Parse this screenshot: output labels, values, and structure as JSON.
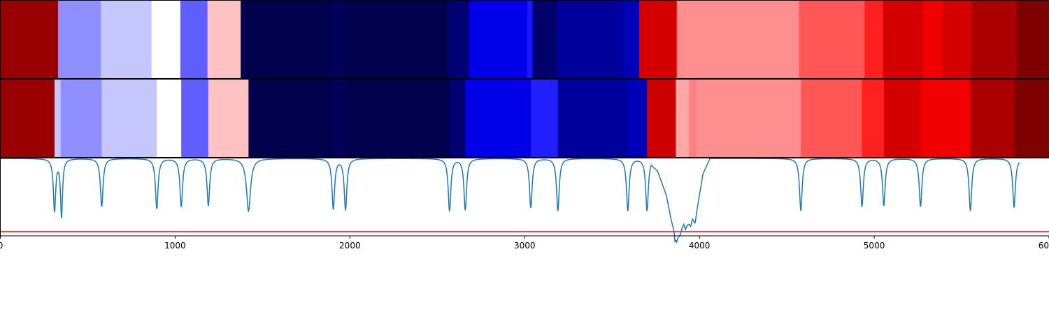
{
  "chart_data": [
    {
      "type": "heatmap",
      "xlim": [
        0,
        6000
      ],
      "segments": [
        {
          "start": 0,
          "end": 330,
          "color": "#990000"
        },
        {
          "start": 330,
          "end": 575,
          "color": "#8f8fff"
        },
        {
          "start": 575,
          "end": 865,
          "color": "#c6c6ff"
        },
        {
          "start": 865,
          "end": 1030,
          "color": "#ffffff"
        },
        {
          "start": 1030,
          "end": 1185,
          "color": "#5f5fff"
        },
        {
          "start": 1185,
          "end": 1375,
          "color": "#ffc2c2"
        },
        {
          "start": 1375,
          "end": 1885,
          "color": "#00004c"
        },
        {
          "start": 1885,
          "end": 1965,
          "color": "#000058"
        },
        {
          "start": 1965,
          "end": 2560,
          "color": "#00004c"
        },
        {
          "start": 2560,
          "end": 2680,
          "color": "#000070"
        },
        {
          "start": 2680,
          "end": 3015,
          "color": "#0000e8"
        },
        {
          "start": 3015,
          "end": 3045,
          "color": "#1818ff"
        },
        {
          "start": 3045,
          "end": 3185,
          "color": "#00006a"
        },
        {
          "start": 3185,
          "end": 3565,
          "color": "#00009c"
        },
        {
          "start": 3565,
          "end": 3655,
          "color": "#0000b8"
        },
        {
          "start": 3655,
          "end": 3870,
          "color": "#d40000"
        },
        {
          "start": 3870,
          "end": 4570,
          "color": "#ff8e8e"
        },
        {
          "start": 4570,
          "end": 4945,
          "color": "#ff5656"
        },
        {
          "start": 4945,
          "end": 5050,
          "color": "#ff2020"
        },
        {
          "start": 5050,
          "end": 5280,
          "color": "#d40000"
        },
        {
          "start": 5280,
          "end": 5390,
          "color": "#f00000"
        },
        {
          "start": 5390,
          "end": 5555,
          "color": "#d40000"
        },
        {
          "start": 5555,
          "end": 5815,
          "color": "#aa0000"
        },
        {
          "start": 5815,
          "end": 6000,
          "color": "#7f0000"
        }
      ]
    },
    {
      "type": "heatmap",
      "xlim": [
        0,
        6000
      ],
      "segments": [
        {
          "start": 0,
          "end": 310,
          "color": "#990000"
        },
        {
          "start": 310,
          "end": 345,
          "color": "#c6c6ff"
        },
        {
          "start": 345,
          "end": 580,
          "color": "#8f8fff"
        },
        {
          "start": 580,
          "end": 895,
          "color": "#c6c6ff"
        },
        {
          "start": 895,
          "end": 1035,
          "color": "#ffffff"
        },
        {
          "start": 1035,
          "end": 1190,
          "color": "#5f5fff"
        },
        {
          "start": 1190,
          "end": 1420,
          "color": "#ffc2c2"
        },
        {
          "start": 1420,
          "end": 1905,
          "color": "#00004c"
        },
        {
          "start": 1905,
          "end": 1975,
          "color": "#000058"
        },
        {
          "start": 1975,
          "end": 2570,
          "color": "#00004c"
        },
        {
          "start": 2570,
          "end": 2660,
          "color": "#000070"
        },
        {
          "start": 2660,
          "end": 3035,
          "color": "#0000e8"
        },
        {
          "start": 3035,
          "end": 3190,
          "color": "#2020ff"
        },
        {
          "start": 3190,
          "end": 3590,
          "color": "#00009c"
        },
        {
          "start": 3590,
          "end": 3700,
          "color": "#0000b8"
        },
        {
          "start": 3700,
          "end": 3865,
          "color": "#cc0000"
        },
        {
          "start": 3865,
          "end": 3940,
          "color": "#ffa6a6"
        },
        {
          "start": 3940,
          "end": 3980,
          "color": "#ff8080"
        },
        {
          "start": 3980,
          "end": 4580,
          "color": "#ff8e8e"
        },
        {
          "start": 4580,
          "end": 4930,
          "color": "#ff5656"
        },
        {
          "start": 4930,
          "end": 5055,
          "color": "#ff2020"
        },
        {
          "start": 5055,
          "end": 5265,
          "color": "#d40000"
        },
        {
          "start": 5265,
          "end": 5550,
          "color": "#f00000"
        },
        {
          "start": 5550,
          "end": 5800,
          "color": "#aa0000"
        },
        {
          "start": 5800,
          "end": 6000,
          "color": "#7f0000"
        }
      ]
    },
    {
      "type": "line",
      "xlim": [
        0,
        6000
      ],
      "ylim": [
        0,
        1
      ],
      "xticks": [
        "0",
        "1000",
        "2000",
        "3000",
        "4000",
        "5000",
        "6000"
      ],
      "series": [
        {
          "color": "#1f77b4",
          "baseline": 1.0,
          "dips": [
            {
              "x": 310,
              "depth": 0.5,
              "width": 8
            },
            {
              "x": 350,
              "depth": 0.55,
              "width": 7
            },
            {
              "x": 580,
              "depth": 0.46,
              "width": 9
            },
            {
              "x": 895,
              "depth": 0.48,
              "width": 9
            },
            {
              "x": 1035,
              "depth": 0.46,
              "width": 9
            },
            {
              "x": 1190,
              "depth": 0.45,
              "width": 9
            },
            {
              "x": 1420,
              "depth": 0.5,
              "width": 14
            },
            {
              "x": 1905,
              "depth": 0.48,
              "width": 9
            },
            {
              "x": 1975,
              "depth": 0.49,
              "width": 9
            },
            {
              "x": 2570,
              "depth": 0.5,
              "width": 9
            },
            {
              "x": 2660,
              "depth": 0.49,
              "width": 9
            },
            {
              "x": 3035,
              "depth": 0.47,
              "width": 9
            },
            {
              "x": 3190,
              "depth": 0.5,
              "width": 9
            },
            {
              "x": 3590,
              "depth": 0.5,
              "width": 9
            },
            {
              "x": 3700,
              "depth": 0.5,
              "width": 9
            },
            {
              "x": 4580,
              "depth": 0.5,
              "width": 9
            },
            {
              "x": 4930,
              "depth": 0.46,
              "width": 9
            },
            {
              "x": 5055,
              "depth": 0.45,
              "width": 9
            },
            {
              "x": 5265,
              "depth": 0.46,
              "width": 9
            },
            {
              "x": 5550,
              "depth": 0.5,
              "width": 9
            },
            {
              "x": 5800,
              "depth": 0.47,
              "width": 9
            }
          ],
          "trough": [
            [
              3680,
              1.0
            ],
            [
              3760,
              0.88
            ],
            [
              3810,
              0.65
            ],
            [
              3840,
              0.4
            ],
            [
              3855,
              0.3
            ],
            [
              3860,
              0.2
            ],
            [
              3865,
              0.22
            ],
            [
              3870,
              0.2
            ],
            [
              3875,
              0.23
            ],
            [
              3880,
              0.25
            ],
            [
              3890,
              0.27
            ],
            [
              3900,
              0.33
            ],
            [
              3910,
              0.37
            ],
            [
              3920,
              0.32
            ],
            [
              3930,
              0.36
            ],
            [
              3940,
              0.37
            ],
            [
              3950,
              0.35
            ],
            [
              3960,
              0.42
            ],
            [
              3975,
              0.38
            ],
            [
              3990,
              0.55
            ],
            [
              4020,
              0.85
            ],
            [
              4060,
              1.0
            ]
          ]
        }
      ],
      "hline": {
        "y": 0.3,
        "color": "#ff0000"
      }
    }
  ]
}
